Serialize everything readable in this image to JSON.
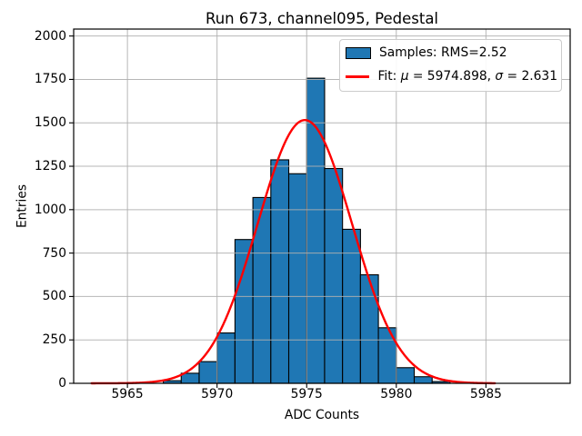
{
  "figure": {
    "title": "Run 673, channel095, Pedestal",
    "xlabel": "ADC Counts",
    "ylabel": "Entries",
    "background": "#ffffff"
  },
  "legend": {
    "samples_label": "Samples: RMS=2.52",
    "fit_label": "Fit: μ = 5974.898, σ = 2.631",
    "position": "upper right"
  },
  "chart_data": {
    "type": "bar",
    "subtype": "histogram",
    "title": "Run 673, channel095, Pedestal",
    "xlabel": "ADC Counts",
    "ylabel": "Entries",
    "bin_edges": [
      5967,
      5968,
      5969,
      5970,
      5971,
      5972,
      5973,
      5974,
      5975,
      5976,
      5977,
      5978,
      5979,
      5980,
      5981,
      5982,
      5983
    ],
    "counts": [
      15,
      58,
      125,
      290,
      828,
      1070,
      1287,
      1207,
      1757,
      1237,
      887,
      625,
      320,
      90,
      38,
      10
    ],
    "samples_rms": 2.52,
    "fit": {
      "type": "gaussian",
      "mu": 5974.898,
      "sigma": 2.631,
      "peak_entries": 1516,
      "x_min": 5963.0,
      "x_max": 5985.5,
      "color": "#ff0000",
      "linewidth": 2.4
    },
    "bar_color": "#1f77b4",
    "bar_edge_color": "#000000",
    "xlim": [
      5962.0,
      5989.7
    ],
    "ylim": [
      0,
      2040
    ],
    "xticks": [
      5965,
      5970,
      5975,
      5980,
      5985
    ],
    "yticks": [
      0,
      250,
      500,
      750,
      1000,
      1250,
      1500,
      1750,
      2000
    ],
    "grid": true,
    "grid_color": "#b0b0b0",
    "legend_entries": [
      "Samples: RMS=2.52",
      "Fit: μ = 5974.898, σ = 2.631"
    ]
  }
}
